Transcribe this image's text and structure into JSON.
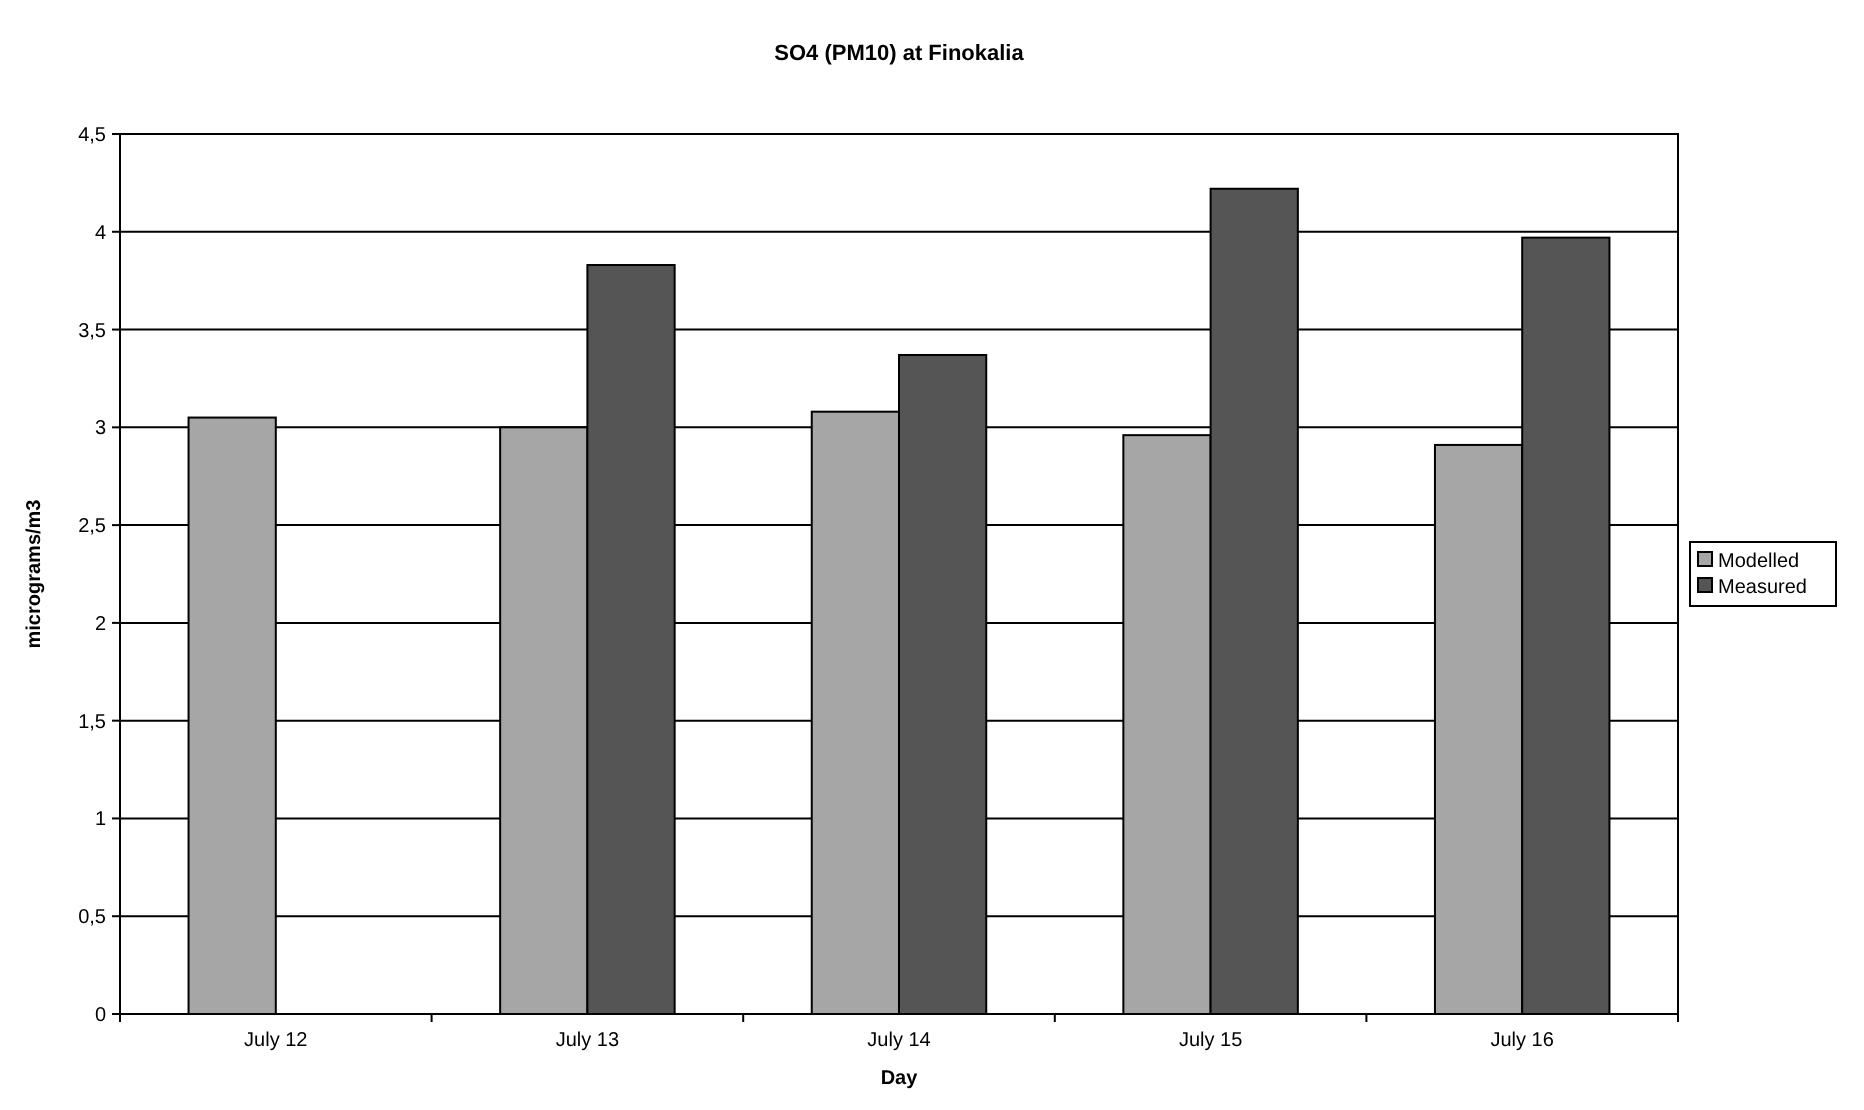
{
  "chart_data": {
    "type": "bar",
    "title": "SO4 (PM10) at Finokalia",
    "xlabel": "Day",
    "ylabel": "micrograms/m3",
    "categories": [
      "July 12",
      "July 13",
      "July 14",
      "July 15",
      "July 16"
    ],
    "series": [
      {
        "name": "Modelled",
        "color": "#a6a6a6",
        "values": [
          3.05,
          3.0,
          3.08,
          2.96,
          2.91
        ]
      },
      {
        "name": "Measured",
        "color": "#555555",
        "values": [
          null,
          3.83,
          3.37,
          4.22,
          3.97
        ]
      }
    ],
    "ylim": [
      0,
      4.5
    ],
    "yticks": [
      0,
      {
        "value": 0.5,
        "label": "0,5"
      },
      1,
      {
        "value": 1.5,
        "label": "1,5"
      },
      2,
      {
        "value": 2.5,
        "label": "2,5"
      },
      3,
      {
        "value": 3.5,
        "label": "3,5"
      },
      4,
      {
        "value": 4.5,
        "label": "4,5"
      }
    ],
    "grid": "y",
    "legend": "right"
  }
}
